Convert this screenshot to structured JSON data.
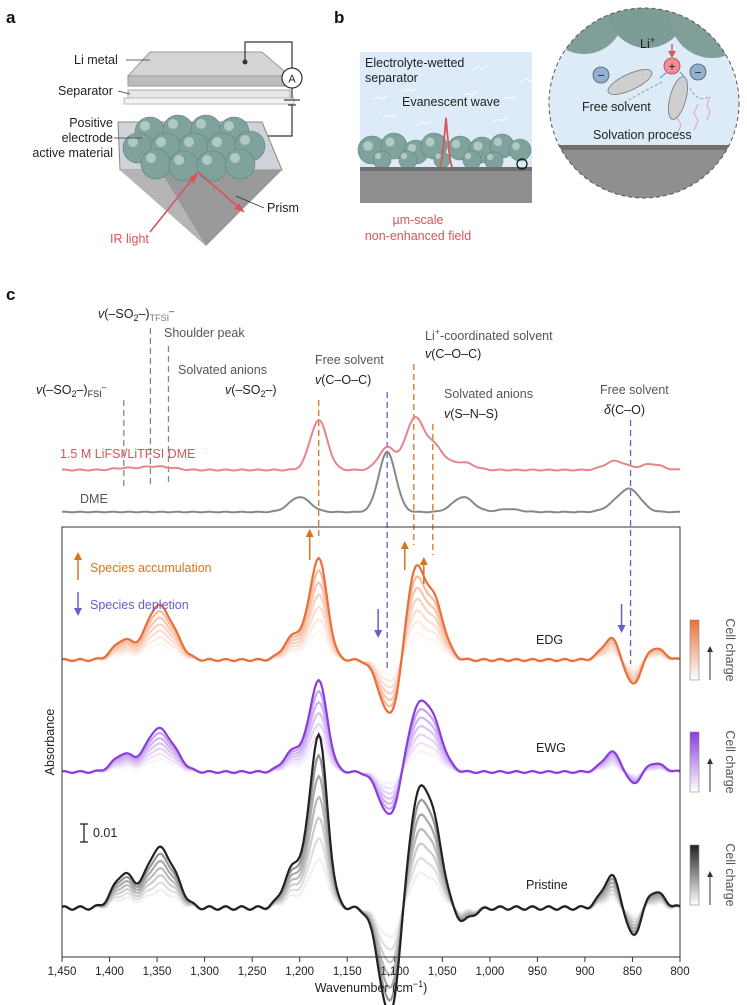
{
  "panels": {
    "a": "a",
    "b": "b",
    "c": "c"
  },
  "panel_a": {
    "li_metal": "Li metal",
    "separator": "Separator",
    "electrode_line1": "Positive",
    "electrode_line2": "electrode",
    "electrode_line3": "active material",
    "prism": "Prism",
    "ir_light": "IR light",
    "ammeter": "A"
  },
  "panel_b": {
    "wetted_line1": "Electrolyte-wetted",
    "wetted_line2": "separator",
    "evanescent": "Evanescent wave",
    "field_line1": "µm-scale",
    "field_line2": "non-enhanced field",
    "li_ion": "Li",
    "li_charge": "+",
    "free_solvent": "Free solvent",
    "solvation": "Solvation process",
    "plus": "+",
    "minus": "−"
  },
  "panel_c": {
    "labels": {
      "so2_fsi": "v(–SO2–)FSI–",
      "so2_tfsi": "v(–SO2–)TFSI–",
      "shoulder": "Shoulder peak",
      "solvated_anions_1": "Solvated anions",
      "so2": "v(–SO2–)",
      "free_solvent_1": "Free solvent",
      "coc_1": "v(C–O–C)",
      "li_coord": "Li+-coordinated solvent",
      "coc_2": "v(C–O–C)",
      "solvated_anions_2": "Solvated anions",
      "sns": "v(S–N–S)",
      "free_solvent_2": "Free solvent",
      "co": "δ(C–O)",
      "electrolyte": "1.5 M LiFSI/LiTFSI DME",
      "dme": "DME",
      "accumulation": "Species accumulation",
      "depletion": "Species depletion",
      "edg": "EDG",
      "ewg": "EWG",
      "pristine": "Pristine",
      "scale": "0.01",
      "cell_charge": "Cell charge"
    }
  },
  "chart_data": {
    "type": "line",
    "xlabel": "Wavenumber (cm−1)",
    "ylabel": "Absorbance",
    "xlim": [
      1450,
      800
    ],
    "x_reversed": true,
    "xticks": [
      "1,450",
      "1,400",
      "1,350",
      "1,300",
      "1,250",
      "1,200",
      "1,150",
      "1,100",
      "1,050",
      "1,000",
      "950",
      "900",
      "850",
      "800"
    ],
    "marker_lines_cm": [
      1385,
      1357,
      1338,
      1180,
      1108,
      1080,
      1060,
      852
    ],
    "series": [
      {
        "name": "1.5 M LiFSI/LiTFSI DME",
        "color": "#e6868c",
        "peaks": [
          [
            1385,
            0.04
          ],
          [
            1357,
            0.06
          ],
          [
            1338,
            0.04
          ],
          [
            1180,
            1.0
          ],
          [
            1080,
            0.95
          ],
          [
            1060,
            0.5
          ],
          [
            1108,
            0.45
          ],
          [
            1028,
            0.15
          ],
          [
            868,
            0.18
          ],
          [
            830,
            0.12
          ]
        ]
      },
      {
        "name": "DME",
        "color": "#888888",
        "peaks": [
          [
            1200,
            0.25
          ],
          [
            1108,
            1.0
          ],
          [
            1028,
            0.25
          ],
          [
            980,
            0.05
          ],
          [
            852,
            0.35
          ],
          [
            868,
            0.1
          ]
        ]
      },
      {
        "name": "EDG",
        "color": "#e8703a",
        "peaks": [
          [
            1385,
            0.2
          ],
          [
            1352,
            0.45
          ],
          [
            1335,
            0.25
          ],
          [
            1180,
            1.0
          ],
          [
            1205,
            0.25
          ],
          [
            1080,
            0.82
          ],
          [
            1060,
            0.62
          ],
          [
            1105,
            -0.55
          ],
          [
            868,
            0.3
          ],
          [
            852,
            -0.35
          ],
          [
            830,
            0.15
          ]
        ]
      },
      {
        "name": "EWG",
        "color": "#8a3fdc",
        "peaks": [
          [
            1385,
            0.2
          ],
          [
            1352,
            0.4
          ],
          [
            1335,
            0.22
          ],
          [
            1180,
            1.0
          ],
          [
            1205,
            0.25
          ],
          [
            1078,
            0.6
          ],
          [
            1060,
            0.5
          ],
          [
            1105,
            -0.5
          ],
          [
            868,
            0.28
          ],
          [
            852,
            -0.22
          ],
          [
            830,
            0.12
          ]
        ]
      },
      {
        "name": "Pristine",
        "color": "#222222",
        "peaks": [
          [
            1385,
            0.2
          ],
          [
            1352,
            0.28
          ],
          [
            1335,
            0.18
          ],
          [
            1180,
            1.0
          ],
          [
            1205,
            0.25
          ],
          [
            1078,
            0.55
          ],
          [
            1060,
            0.45
          ],
          [
            1105,
            -0.65
          ],
          [
            1030,
            -0.08
          ],
          [
            868,
            0.25
          ],
          [
            852,
            -0.25
          ],
          [
            830,
            0.12
          ]
        ]
      }
    ]
  }
}
